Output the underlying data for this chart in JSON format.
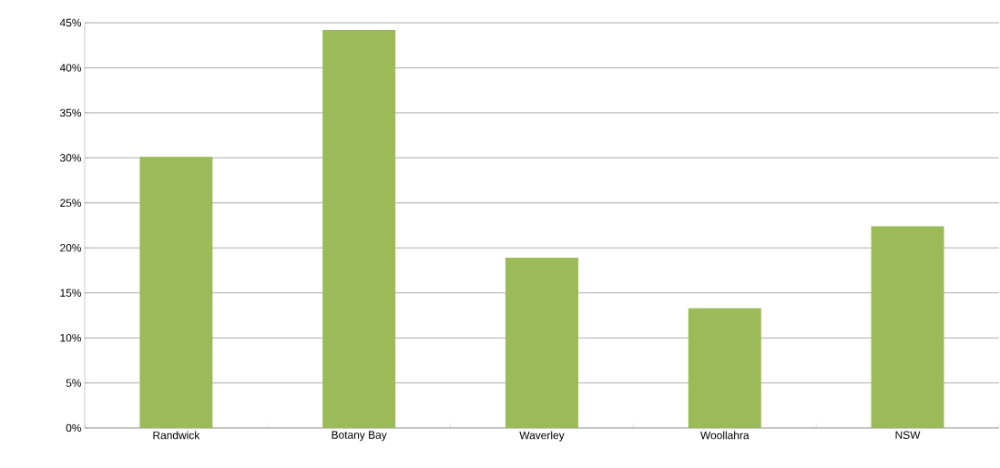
{
  "chart_data": {
    "type": "bar",
    "categories": [
      "Randwick",
      "Botany Bay",
      "Waverley",
      "Woollahra",
      "NSW"
    ],
    "values": [
      30.1,
      44.2,
      18.9,
      13.3,
      22.4
    ],
    "color": "#9bbb59",
    "ylim": [
      0,
      45
    ],
    "yticks": [
      {
        "value": 0,
        "label": "0%"
      },
      {
        "value": 5,
        "label": "5%"
      },
      {
        "value": 10,
        "label": "10%"
      },
      {
        "value": 15,
        "label": "15%"
      },
      {
        "value": 20,
        "label": "20%"
      },
      {
        "value": 25,
        "label": "25%"
      },
      {
        "value": 30,
        "label": "30%"
      },
      {
        "value": 35,
        "label": "35%"
      },
      {
        "value": 40,
        "label": "40%"
      },
      {
        "value": 45,
        "label": "45%"
      }
    ],
    "grid": "y"
  }
}
